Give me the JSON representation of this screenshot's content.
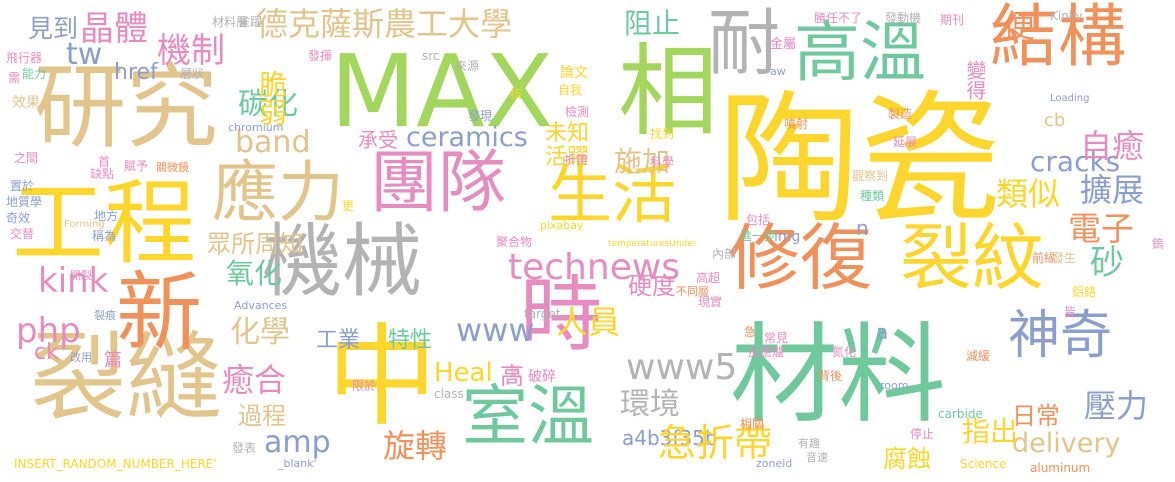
{
  "palette": {
    "yellow": "#fcd62d",
    "tan": "#e2c48d",
    "green": "#6fc99c",
    "orange": "#f0915c",
    "pink": "#e58cc0",
    "blue": "#8c9fcc",
    "lime": "#a3d65c",
    "gray": "#b3b3b3"
  },
  "words": [
    {
      "text": "陶瓷",
      "color": "yellow"
    },
    {
      "text": "MAX",
      "color": "lime"
    },
    {
      "text": "相",
      "color": "lime"
    },
    {
      "text": "研究",
      "color": "tan"
    },
    {
      "text": "工程",
      "color": "yellow"
    },
    {
      "text": "材料",
      "color": "green"
    },
    {
      "text": "裂縫",
      "color": "tan"
    },
    {
      "text": "中",
      "color": "yellow"
    },
    {
      "text": "新",
      "color": "orange"
    },
    {
      "text": "機械",
      "color": "gray"
    },
    {
      "text": "修復",
      "color": "orange"
    },
    {
      "text": "裂紋",
      "color": "yellow"
    },
    {
      "text": "團隊",
      "color": "pink"
    },
    {
      "text": "高溫",
      "color": "green"
    },
    {
      "text": "結構",
      "color": "orange"
    },
    {
      "text": "應力",
      "color": "tan"
    },
    {
      "text": "時",
      "color": "pink"
    },
    {
      "text": "室溫",
      "color": "green"
    },
    {
      "text": "生活",
      "color": "yellow"
    },
    {
      "text": "神奇",
      "color": "blue"
    },
    {
      "text": "耐",
      "color": "gray"
    },
    {
      "text": "德克薩斯農工大學",
      "color": "tan"
    },
    {
      "text": "機制",
      "color": "pink"
    },
    {
      "text": "晶體",
      "color": "pink"
    },
    {
      "text": "見到",
      "color": "blue"
    },
    {
      "text": "tw",
      "color": "blue"
    },
    {
      "text": "technews",
      "color": "pink"
    },
    {
      "text": "www",
      "color": "blue"
    },
    {
      "text": "www5",
      "color": "gray"
    },
    {
      "text": "ceramics",
      "color": "blue"
    },
    {
      "text": "band",
      "color": "tan"
    },
    {
      "text": "kink",
      "color": "pink"
    },
    {
      "text": "php",
      "color": "pink"
    },
    {
      "text": "amp",
      "color": "blue"
    },
    {
      "text": "delivery",
      "color": "tan"
    },
    {
      "text": "cracks",
      "color": "blue"
    },
    {
      "text": "Heal",
      "color": "yellow"
    },
    {
      "text": "a4b3f35b",
      "color": "blue"
    },
    {
      "text": "ck",
      "color": "pink"
    },
    {
      "text": "電子",
      "color": "orange"
    },
    {
      "text": "擴展",
      "color": "blue"
    },
    {
      "text": "自癒",
      "color": "pink"
    },
    {
      "text": "類似",
      "color": "yellow"
    },
    {
      "text": "壓力",
      "color": "blue"
    },
    {
      "text": "砂",
      "color": "green"
    },
    {
      "text": "施加",
      "color": "tan"
    },
    {
      "text": "氧化",
      "color": "green"
    },
    {
      "text": "碳化",
      "color": "green"
    },
    {
      "text": "化學",
      "color": "tan"
    },
    {
      "text": "癒合",
      "color": "pink"
    },
    {
      "text": "環境",
      "color": "gray"
    },
    {
      "text": "旋轉",
      "color": "orange"
    },
    {
      "text": "急折帶",
      "color": "yellow"
    },
    {
      "text": "人員",
      "color": "yellow"
    },
    {
      "text": "阻止",
      "color": "green"
    },
    {
      "text": "便",
      "color": "orange"
    },
    {
      "text": "變得",
      "color": "pink"
    },
    {
      "text": "脆弱",
      "color": "yellow"
    },
    {
      "text": "承受",
      "color": "pink"
    },
    {
      "text": "未知",
      "color": "yellow"
    },
    {
      "text": "活躍",
      "color": "yellow"
    },
    {
      "text": "眾所周知",
      "color": "tan"
    },
    {
      "text": "硬度",
      "color": "pink"
    },
    {
      "text": "特性",
      "color": "green"
    },
    {
      "text": "工業",
      "color": "blue"
    },
    {
      "text": "過程",
      "color": "tan"
    },
    {
      "text": "高",
      "color": "pink"
    },
    {
      "text": "腐蝕",
      "color": "yellow"
    },
    {
      "text": "指出",
      "color": "yellow"
    },
    {
      "text": "日常",
      "color": "orange"
    },
    {
      "text": "篇",
      "color": "pink"
    },
    {
      "text": "href",
      "color": "blue"
    },
    {
      "text": "n",
      "color": "blue"
    },
    {
      "text": "a",
      "color": "blue"
    },
    {
      "text": "cb",
      "color": "tan"
    },
    {
      "text": "材料層",
      "color": "gray"
    },
    {
      "text": "雀躍",
      "color": "gray"
    },
    {
      "text": "發揮",
      "color": "pink"
    },
    {
      "text": "src",
      "color": "gray"
    },
    {
      "text": "來源",
      "color": "gray"
    },
    {
      "text": "論文",
      "color": "yellow"
    },
    {
      "text": "金屬",
      "color": "pink"
    },
    {
      "text": "勝任不了",
      "color": "pink"
    },
    {
      "text": "發動機",
      "color": "gray"
    },
    {
      "text": "期刊",
      "color": "pink"
    },
    {
      "text": "Kinky",
      "color": "gray"
    },
    {
      "text": "飛行器",
      "color": "pink"
    },
    {
      "text": "需",
      "color": "pink"
    },
    {
      "text": "能力",
      "color": "green"
    },
    {
      "text": "層狀",
      "color": "gray"
    },
    {
      "text": "效果",
      "color": "tan"
    },
    {
      "text": "之間",
      "color": "pink"
    },
    {
      "text": "賦予",
      "color": "pink"
    },
    {
      "text": "首",
      "color": "pink"
    },
    {
      "text": "缺點",
      "color": "pink"
    },
    {
      "text": "置於",
      "color": "blue"
    },
    {
      "text": "地質學",
      "color": "blue"
    },
    {
      "text": "奇效",
      "color": "blue"
    },
    {
      "text": "交替",
      "color": "pink"
    },
    {
      "text": "地方",
      "color": "blue"
    },
    {
      "text": "稱為",
      "color": "blue"
    },
    {
      "text": "Forming",
      "color": "tan"
    },
    {
      "text": "chromium",
      "color": "blue"
    },
    {
      "text": "自我",
      "color": "yellow"
    },
    {
      "text": "核",
      "color": "yellow"
    },
    {
      "text": "發現",
      "color": "blue"
    },
    {
      "text": "檢測",
      "color": "pink"
    },
    {
      "text": "破碎",
      "color": "pink"
    },
    {
      "text": "折帶",
      "color": "pink"
    },
    {
      "text": "科學",
      "color": "pink"
    },
    {
      "text": "找到",
      "color": "yellow"
    },
    {
      "text": "噴射",
      "color": "orange"
    },
    {
      "text": "製造",
      "color": "orange"
    },
    {
      "text": "延展",
      "color": "pink"
    },
    {
      "text": "觀察到",
      "color": "tan"
    },
    {
      "text": "種類",
      "color": "green"
    },
    {
      "text": "包括",
      "color": "pink"
    },
    {
      "text": "進一步",
      "color": "green"
    },
    {
      "text": "img",
      "color": "blue"
    },
    {
      "text": "Loading",
      "color": "blue"
    },
    {
      "text": "aw",
      "color": "blue"
    },
    {
      "text": "更",
      "color": "yellow"
    },
    {
      "text": "關微鏡",
      "color": "orange"
    },
    {
      "text": "聚合物",
      "color": "pink"
    },
    {
      "text": "pixabay",
      "color": "yellow"
    },
    {
      "text": "temperaturesUnder",
      "color": "yellow"
    },
    {
      "text": "內部",
      "color": "gray"
    },
    {
      "text": "高超",
      "color": "pink"
    },
    {
      "text": "不同層",
      "color": "orange"
    },
    {
      "text": "現實",
      "color": "pink"
    },
    {
      "text": "Advances",
      "color": "blue"
    },
    {
      "text": "target",
      "color": "gray"
    },
    {
      "text": "開裂",
      "color": "pink"
    },
    {
      "text": "裂痕",
      "color": "blue"
    },
    {
      "text": "改用",
      "color": "blue"
    },
    {
      "text": "限於",
      "color": "pink"
    },
    {
      "text": "class",
      "color": "gray"
    },
    {
      "text": "鋁",
      "color": "pink"
    },
    {
      "text": "急",
      "color": "orange"
    },
    {
      "text": "常見",
      "color": "pink"
    },
    {
      "text": "反應爐",
      "color": "pink"
    },
    {
      "text": "氮化",
      "color": "pink"
    },
    {
      "text": "相關",
      "color": "orange"
    },
    {
      "text": "背後",
      "color": "orange"
    },
    {
      "text": "room",
      "color": "blue"
    },
    {
      "text": "減緩",
      "color": "orange"
    },
    {
      "text": "前緣",
      "color": "orange"
    },
    {
      "text": "發生",
      "color": "tan"
    },
    {
      "text": "鋁鉻",
      "color": "yellow"
    },
    {
      "text": "皆",
      "color": "pink"
    },
    {
      "text": "鎢",
      "color": "pink"
    },
    {
      "text": "停止",
      "color": "pink"
    },
    {
      "text": "carbide",
      "color": "green"
    },
    {
      "text": "有趣",
      "color": "gray"
    },
    {
      "text": "音速",
      "color": "gray"
    },
    {
      "text": "zoneid",
      "color": "blue"
    },
    {
      "text": "Science",
      "color": "yellow"
    },
    {
      "text": "aluminum",
      "color": "orange"
    },
    {
      "text": "發表",
      "color": "gray"
    },
    {
      "text": "INSERT_RANDOM_NUMBER_HERE'",
      "color": "yellow"
    },
    {
      "text": "_blank'",
      "color": "blue"
    }
  ]
}
